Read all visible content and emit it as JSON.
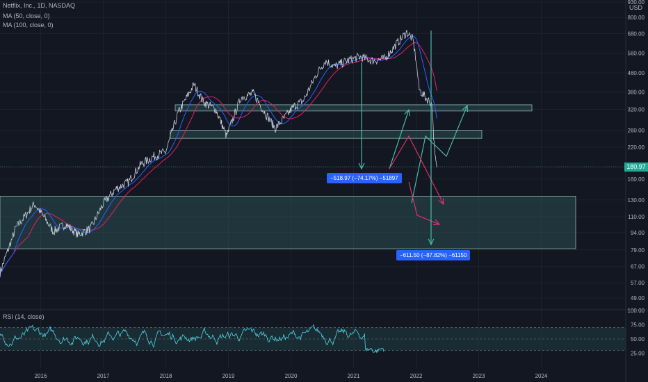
{
  "header": {
    "symbol": "Netflix, Inc., 1D, NASDAQ",
    "indicators": [
      "MA (50, close, 0)",
      "MA (100, close, 0)"
    ],
    "currency": "USD"
  },
  "rsi_label": "RSI (14, close)",
  "last_price": "180.97",
  "measures": [
    {
      "text": "−518.97 (−74.17%) −51897"
    },
    {
      "text": "−611.50 (−87.82%) −61150"
    }
  ],
  "colors": {
    "background": "#131722",
    "price": "#c9d1e3",
    "ma50": "#2962ff",
    "ma100": "#e91e63",
    "zone": "#2f5c5a",
    "arrow_up": "#4bb8a9",
    "arrow_down": "#e0306a",
    "rsi": "#4fd8e8",
    "badge": "#2962ff",
    "last_price_tag": "#22ab94"
  },
  "chart_data": [
    {
      "type": "line",
      "title": "Netflix, Inc., 1D, NASDAQ",
      "scale": "log",
      "y_ticks": [
        "930.00",
        "800.00",
        "680.00",
        "560.00",
        "460.00",
        "380.00",
        "320.00",
        "260.00",
        "220.00",
        "180.00",
        "160.00",
        "130.00",
        "110.00",
        "94.00",
        "79.00",
        "67.00",
        "57.00",
        "49.00"
      ],
      "x_ticks": [
        "2016",
        "2017",
        "2018",
        "2019",
        "2020",
        "2021",
        "2022",
        "2023",
        "2024"
      ],
      "series": [
        {
          "name": "Netflix, Inc.",
          "x": [
            2015.35,
            2015.6,
            2015.9,
            2016.05,
            2016.2,
            2016.4,
            2016.6,
            2016.8,
            2017.0,
            2017.2,
            2017.4,
            2017.6,
            2017.8,
            2018.0,
            2018.2,
            2018.45,
            2018.6,
            2018.8,
            2018.97,
            2019.2,
            2019.4,
            2019.6,
            2019.75,
            2019.9,
            2020.05,
            2020.2,
            2020.4,
            2020.55,
            2020.7,
            2020.9,
            2021.1,
            2021.3,
            2021.5,
            2021.7,
            2021.85,
            2021.95,
            2022.0,
            2022.05,
            2022.15,
            2022.25,
            2022.3,
            2022.33
          ],
          "y": [
            63,
            98,
            125,
            110,
            95,
            102,
            92,
            98,
            125,
            145,
            155,
            185,
            200,
            210,
            310,
            410,
            345,
            320,
            245,
            360,
            375,
            305,
            265,
            295,
            330,
            350,
            450,
            520,
            490,
            520,
            540,
            520,
            530,
            620,
            690,
            640,
            520,
            390,
            360,
            340,
            200,
            180
          ]
        }
      ],
      "zones": [
        {
          "y_low": 315,
          "y_high": 335,
          "x_start": 2018.15,
          "x_end": 2023.85
        },
        {
          "y_low": 240,
          "y_high": 260,
          "x_start": 2018.07,
          "x_end": 2023.05
        },
        {
          "y_low": 80,
          "y_high": 135,
          "x_start": 2015.35,
          "x_end": 2025.55
        }
      ]
    },
    {
      "type": "line",
      "title": "RSI (14, close)",
      "y_ticks": [
        "100.00",
        "75.00",
        "50.00",
        "25.00"
      ],
      "ylim": [
        0,
        100
      ]
    }
  ]
}
